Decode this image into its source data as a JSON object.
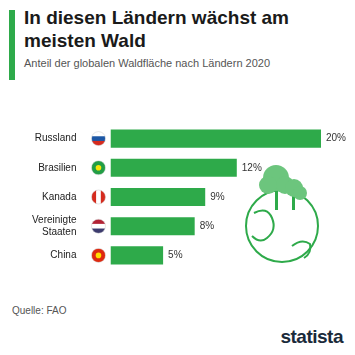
{
  "chart_data": {
    "type": "bar",
    "orientation": "horizontal",
    "title": "In diesen Ländern wächst am meisten Wald",
    "subtitle": "Anteil der globalen Waldfläche nach Ländern 2020",
    "categories": [
      "Russland",
      "Brasilien",
      "Kanada",
      "Vereinigte Staaten",
      "China"
    ],
    "values": [
      20,
      12,
      9,
      8,
      5
    ],
    "value_labels": [
      "20%",
      "12%",
      "9%",
      "8%",
      "5%"
    ],
    "color": "#2eaa4a",
    "xlim": [
      0,
      20
    ],
    "grid": false,
    "data_labels": true,
    "tick_labels": "y",
    "source": "Quelle: FAO",
    "brand": "statista"
  }
}
